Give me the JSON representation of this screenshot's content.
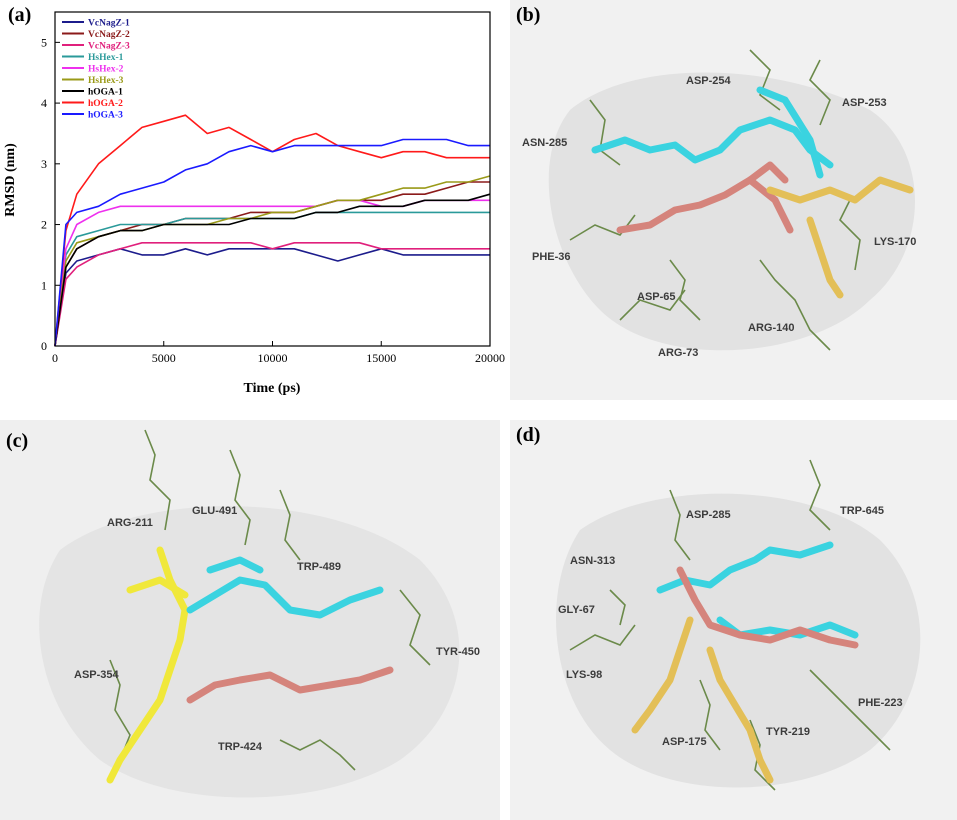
{
  "panels": {
    "a": "(a)",
    "b": "(b)",
    "c": "(c)",
    "d": "(d)"
  },
  "chart_data": {
    "type": "line",
    "title": "",
    "xlabel": "Time (ps)",
    "ylabel": "RMSD (nm)",
    "xlim": [
      0,
      20000
    ],
    "ylim": [
      0,
      5.5
    ],
    "xticks": [
      "0",
      "5000",
      "10000",
      "15000",
      "20000"
    ],
    "yticks": [
      "0",
      "1",
      "2",
      "3",
      "4",
      "5"
    ],
    "grid": false,
    "legend_position": "top-left",
    "x": [
      0,
      500,
      1000,
      2000,
      3000,
      4000,
      5000,
      6000,
      7000,
      8000,
      9000,
      10000,
      11000,
      12000,
      13000,
      14000,
      15000,
      16000,
      17000,
      18000,
      19000,
      20000
    ],
    "series": [
      {
        "name": "VcNagZ-1",
        "color": "#1c1c8c",
        "values": [
          0,
          1.2,
          1.4,
          1.5,
          1.6,
          1.5,
          1.5,
          1.6,
          1.5,
          1.6,
          1.6,
          1.6,
          1.6,
          1.5,
          1.4,
          1.5,
          1.6,
          1.5,
          1.5,
          1.5,
          1.5,
          1.5
        ]
      },
      {
        "name": "VcNagZ-2",
        "color": "#8b1a1a",
        "values": [
          0,
          1.3,
          1.6,
          1.8,
          1.9,
          2.0,
          2.0,
          2.1,
          2.1,
          2.1,
          2.2,
          2.2,
          2.2,
          2.3,
          2.4,
          2.4,
          2.4,
          2.5,
          2.5,
          2.6,
          2.7,
          2.7
        ]
      },
      {
        "name": "VcNagZ-3",
        "color": "#e0207c",
        "values": [
          0,
          1.1,
          1.3,
          1.5,
          1.6,
          1.7,
          1.7,
          1.7,
          1.7,
          1.7,
          1.7,
          1.6,
          1.7,
          1.7,
          1.7,
          1.7,
          1.6,
          1.6,
          1.6,
          1.6,
          1.6,
          1.6
        ]
      },
      {
        "name": "HsHex-1",
        "color": "#2a9a9a",
        "values": [
          0,
          1.5,
          1.8,
          1.9,
          2.0,
          2.0,
          2.0,
          2.1,
          2.1,
          2.1,
          2.1,
          2.1,
          2.1,
          2.2,
          2.2,
          2.2,
          2.2,
          2.2,
          2.2,
          2.2,
          2.2,
          2.2
        ]
      },
      {
        "name": "HsHex-2",
        "color": "#ee30ee",
        "values": [
          0,
          1.6,
          2.0,
          2.2,
          2.3,
          2.3,
          2.3,
          2.3,
          2.3,
          2.3,
          2.3,
          2.3,
          2.3,
          2.3,
          2.4,
          2.4,
          2.3,
          2.3,
          2.4,
          2.4,
          2.4,
          2.4
        ]
      },
      {
        "name": "HsHex-3",
        "color": "#9a9a18",
        "values": [
          0,
          1.4,
          1.7,
          1.8,
          1.9,
          1.9,
          2.0,
          2.0,
          2.0,
          2.1,
          2.1,
          2.2,
          2.2,
          2.3,
          2.4,
          2.4,
          2.5,
          2.6,
          2.6,
          2.7,
          2.7,
          2.8
        ]
      },
      {
        "name": "hOGA-1",
        "color": "#000000",
        "values": [
          0,
          1.3,
          1.6,
          1.8,
          1.9,
          1.9,
          2.0,
          2.0,
          2.0,
          2.0,
          2.1,
          2.1,
          2.1,
          2.2,
          2.2,
          2.3,
          2.3,
          2.3,
          2.4,
          2.4,
          2.4,
          2.5
        ]
      },
      {
        "name": "hOGA-2",
        "color": "#ff1a1a",
        "values": [
          0,
          1.9,
          2.5,
          3.0,
          3.3,
          3.6,
          3.7,
          3.8,
          3.5,
          3.6,
          3.4,
          3.2,
          3.4,
          3.5,
          3.3,
          3.2,
          3.1,
          3.2,
          3.2,
          3.1,
          3.1,
          3.1
        ]
      },
      {
        "name": "hOGA-3",
        "color": "#1a1aff",
        "values": [
          0,
          2.0,
          2.2,
          2.3,
          2.5,
          2.6,
          2.7,
          2.9,
          3.0,
          3.2,
          3.3,
          3.2,
          3.3,
          3.3,
          3.3,
          3.3,
          3.3,
          3.4,
          3.4,
          3.4,
          3.3,
          3.3
        ]
      }
    ]
  },
  "residues": {
    "b": [
      "ASP-254",
      "ASP-253",
      "ASN-285",
      "LYS-170",
      "PHE-36",
      "ASP-65",
      "ARG-140",
      "ARG-73"
    ],
    "c": [
      "ARG-211",
      "GLU-491",
      "TRP-489",
      "TYR-450",
      "ASP-354",
      "TRP-424"
    ],
    "d": [
      "ASP-285",
      "TRP-645",
      "ASN-313",
      "GLY-67",
      "LYS-98",
      "PHE-223",
      "ASP-175",
      "TYR-219"
    ]
  }
}
